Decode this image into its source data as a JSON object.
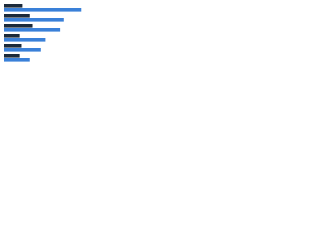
{
  "chart_data": {
    "type": "bar",
    "orientation": "horizontal",
    "categories": [
      null,
      null,
      null,
      null,
      null,
      null
    ],
    "series": [
      {
        "color": "#1c2a3a",
        "values": [
          20,
          28,
          31,
          17,
          19,
          17
        ]
      },
      {
        "color": "#3a80d8",
        "values": [
          84,
          65,
          61,
          45,
          40,
          28
        ]
      }
    ],
    "xlim": [
      0,
      100
    ]
  }
}
